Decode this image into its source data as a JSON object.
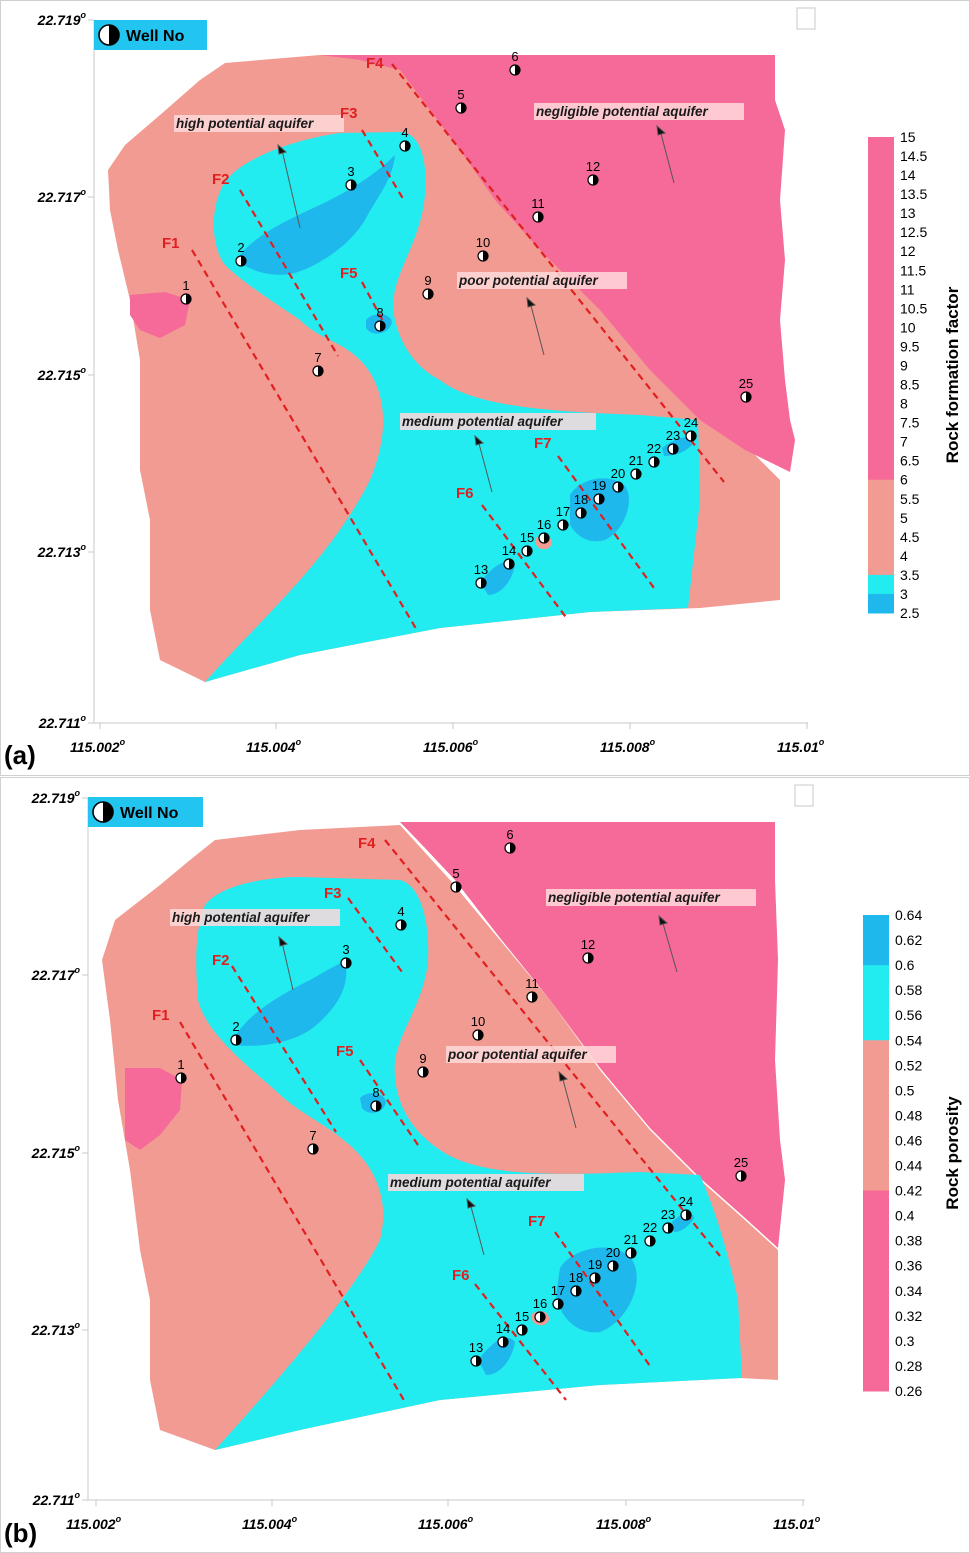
{
  "colors": {
    "high": "#1fb8ec",
    "medium": "#22ecef",
    "poor": "#f29b93",
    "negligible": "#f56a98",
    "fault": "#e02020",
    "legend_box": "#22c4f0"
  },
  "legend_box_label": "Well No",
  "panels": [
    {
      "label": "(a)",
      "x_ticks": [
        "115.002",
        "115.004",
        "115.006",
        "115.008",
        "115.01"
      ],
      "y_ticks": [
        "22.719",
        "22.717",
        "22.715",
        "22.713",
        "22.711"
      ],
      "zones": {
        "high": "high potential aquifer",
        "negligible": "negligible potential aquifer",
        "poor": "poor potential aquifer",
        "medium": "medium potential aquifer"
      },
      "faults": [
        "F1",
        "F2",
        "F3",
        "F4",
        "F5",
        "F6",
        "F7"
      ],
      "wells": [
        "1",
        "2",
        "3",
        "4",
        "5",
        "6",
        "7",
        "8",
        "9",
        "10",
        "11",
        "12",
        "13",
        "14",
        "15",
        "16",
        "17",
        "18",
        "19",
        "20",
        "21",
        "22",
        "23",
        "24",
        "25"
      ],
      "colorbar": {
        "title": "Rock formation factor",
        "ticks": [
          "15",
          "14.5",
          "14",
          "13.5",
          "13",
          "12.5",
          "12",
          "11.5",
          "11",
          "10.5",
          "10",
          "9.5",
          "9",
          "8.5",
          "8",
          "7.5",
          "7",
          "6.5",
          "6",
          "5.5",
          "5",
          "4.5",
          "4",
          "3.5",
          "3",
          "2.5"
        ]
      }
    },
    {
      "label": "(b)",
      "x_ticks": [
        "115.002",
        "115.004",
        "115.006",
        "115.008",
        "115.01"
      ],
      "y_ticks": [
        "22.719",
        "22.717",
        "22.715",
        "22.713",
        "22.711"
      ],
      "zones": {
        "high": "high potential aquifer",
        "negligible": "negligible potential aquifer",
        "poor": "poor potential aquifer",
        "medium": "medium potential aquifer"
      },
      "faults": [
        "F1",
        "F2",
        "F3",
        "F4",
        "F5",
        "F6",
        "F7"
      ],
      "wells": [
        "1",
        "2",
        "3",
        "4",
        "5",
        "6",
        "7",
        "8",
        "9",
        "10",
        "11",
        "12",
        "13",
        "14",
        "15",
        "16",
        "17",
        "18",
        "19",
        "20",
        "21",
        "22",
        "23",
        "24",
        "25"
      ],
      "colorbar": {
        "title": "Rock porosity",
        "ticks": [
          "0.64",
          "0.62",
          "0.6",
          "0.58",
          "0.56",
          "0.54",
          "0.52",
          "0.5",
          "0.48",
          "0.46",
          "0.44",
          "0.42",
          "0.4",
          "0.38",
          "0.36",
          "0.34",
          "0.32",
          "0.3",
          "0.28",
          "0.26"
        ]
      }
    }
  ]
}
